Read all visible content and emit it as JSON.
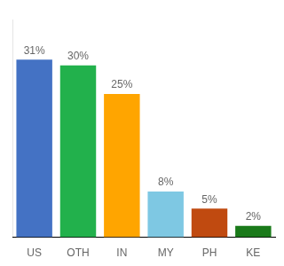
{
  "chart_data": {
    "type": "bar",
    "categories": [
      "US",
      "OTH",
      "IN",
      "MY",
      "PH",
      "KE"
    ],
    "values": [
      31,
      30,
      25,
      8,
      5,
      2
    ],
    "value_labels": [
      "31%",
      "30%",
      "25%",
      "8%",
      "5%",
      "2%"
    ],
    "data_labels": true,
    "colors": [
      "#4472C4",
      "#22B14C",
      "#FFA500",
      "#7EC8E3",
      "#C04A10",
      "#1A7A1A"
    ],
    "ylim": [
      0,
      38
    ],
    "tick_labels": "x",
    "grid": false
  }
}
